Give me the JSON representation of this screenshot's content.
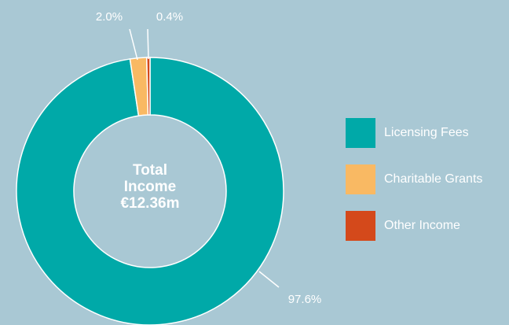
{
  "chart_data": {
    "type": "donut",
    "center_label": [
      "Total",
      "Income",
      "€12.36m"
    ],
    "categories": [
      "Licensing Fees",
      "Charitable Grants",
      "Other Income"
    ],
    "values": [
      97.6,
      2.0,
      0.4
    ],
    "value_labels": [
      "97.6%",
      "2.0%",
      "0.4%"
    ],
    "colors": [
      "#00a9a8",
      "#f9b963",
      "#d4491b"
    ],
    "legend": "right"
  }
}
